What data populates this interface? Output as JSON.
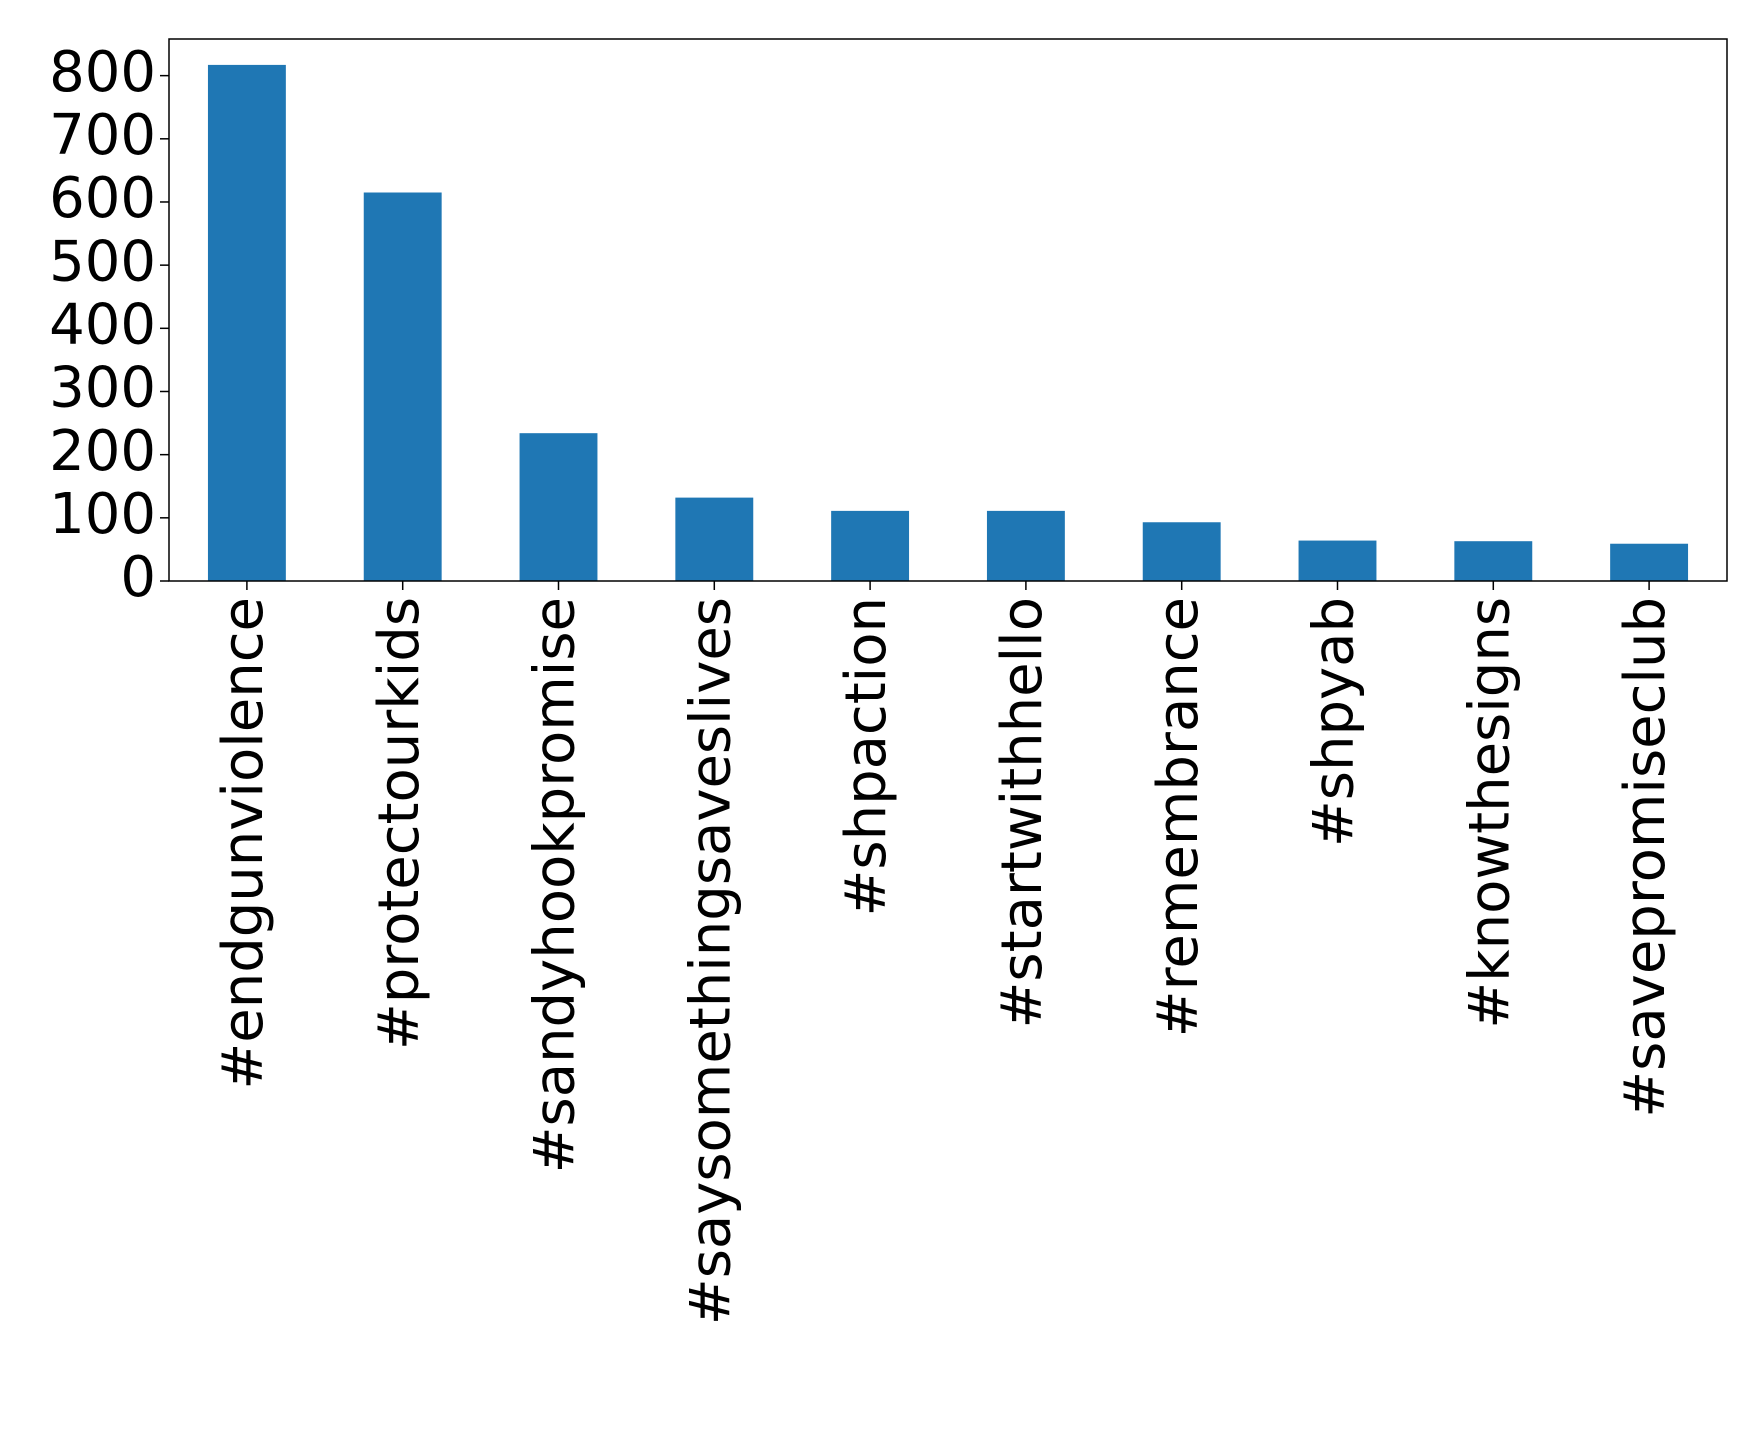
{
  "chart_data": {
    "type": "bar",
    "categories": [
      "#endgunviolence",
      "#protectourkids",
      "#sandyhookpromise",
      "#saysomethingsaveslives",
      "#shpaction",
      "#startwithhello",
      "#remembrance",
      "#shpyab",
      "#knowthesigns",
      "#savepromiseclub"
    ],
    "values": [
      817,
      615,
      234,
      132,
      111,
      111,
      93,
      64,
      63,
      59
    ],
    "color": "#1f77b4",
    "ylim": [
      0,
      858
    ],
    "yticks": [
      0,
      100,
      200,
      300,
      400,
      500,
      600,
      700,
      800
    ],
    "grid": false
  }
}
